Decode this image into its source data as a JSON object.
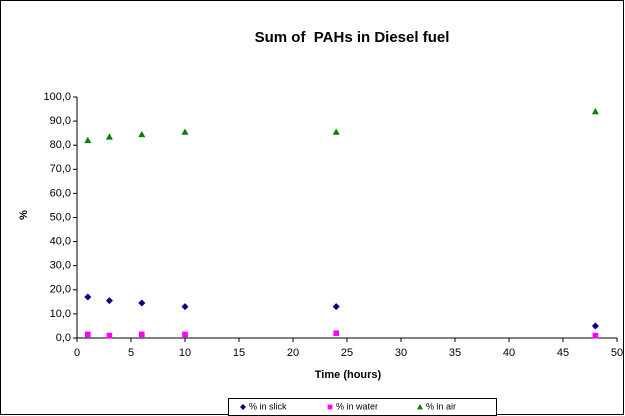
{
  "chart_data": {
    "type": "scatter",
    "title": "Sum of  PAHs in Diesel fuel",
    "x_label": "Time (hours)",
    "y_label": "%",
    "x": [
      1,
      3,
      6,
      10,
      24,
      48
    ],
    "series": [
      {
        "name": "% in slick",
        "color": "#000080",
        "marker": "diamond",
        "values": [
          17,
          15.5,
          14.5,
          13,
          13,
          5
        ]
      },
      {
        "name": "% in water",
        "color": "#ff00ff",
        "marker": "square",
        "values": [
          1.5,
          1,
          1.5,
          1.5,
          2,
          1
        ]
      },
      {
        "name": "% in air",
        "color": "#008000",
        "marker": "triangle",
        "values": [
          82,
          83.5,
          84.5,
          85.5,
          85.5,
          94
        ]
      }
    ],
    "xlim": [
      0,
      50
    ],
    "xticks": [
      0,
      5,
      10,
      15,
      20,
      25,
      30,
      35,
      40,
      45,
      50
    ],
    "ylim": [
      0,
      100
    ],
    "yticks": [
      {
        "value": 0,
        "label": "0,0"
      },
      {
        "value": 10,
        "label": "10,0"
      },
      {
        "value": 20,
        "label": "20,0"
      },
      {
        "value": 30,
        "label": "30,0"
      },
      {
        "value": 40,
        "label": "40,0"
      },
      {
        "value": 50,
        "label": "50,0"
      },
      {
        "value": 60,
        "label": "60,0"
      },
      {
        "value": 70,
        "label": "70,0"
      },
      {
        "value": 80,
        "label": "80,0"
      },
      {
        "value": 90,
        "label": "90,0"
      },
      {
        "value": 100,
        "label": "100,0"
      }
    ],
    "grid": false,
    "legend": "bottom"
  }
}
